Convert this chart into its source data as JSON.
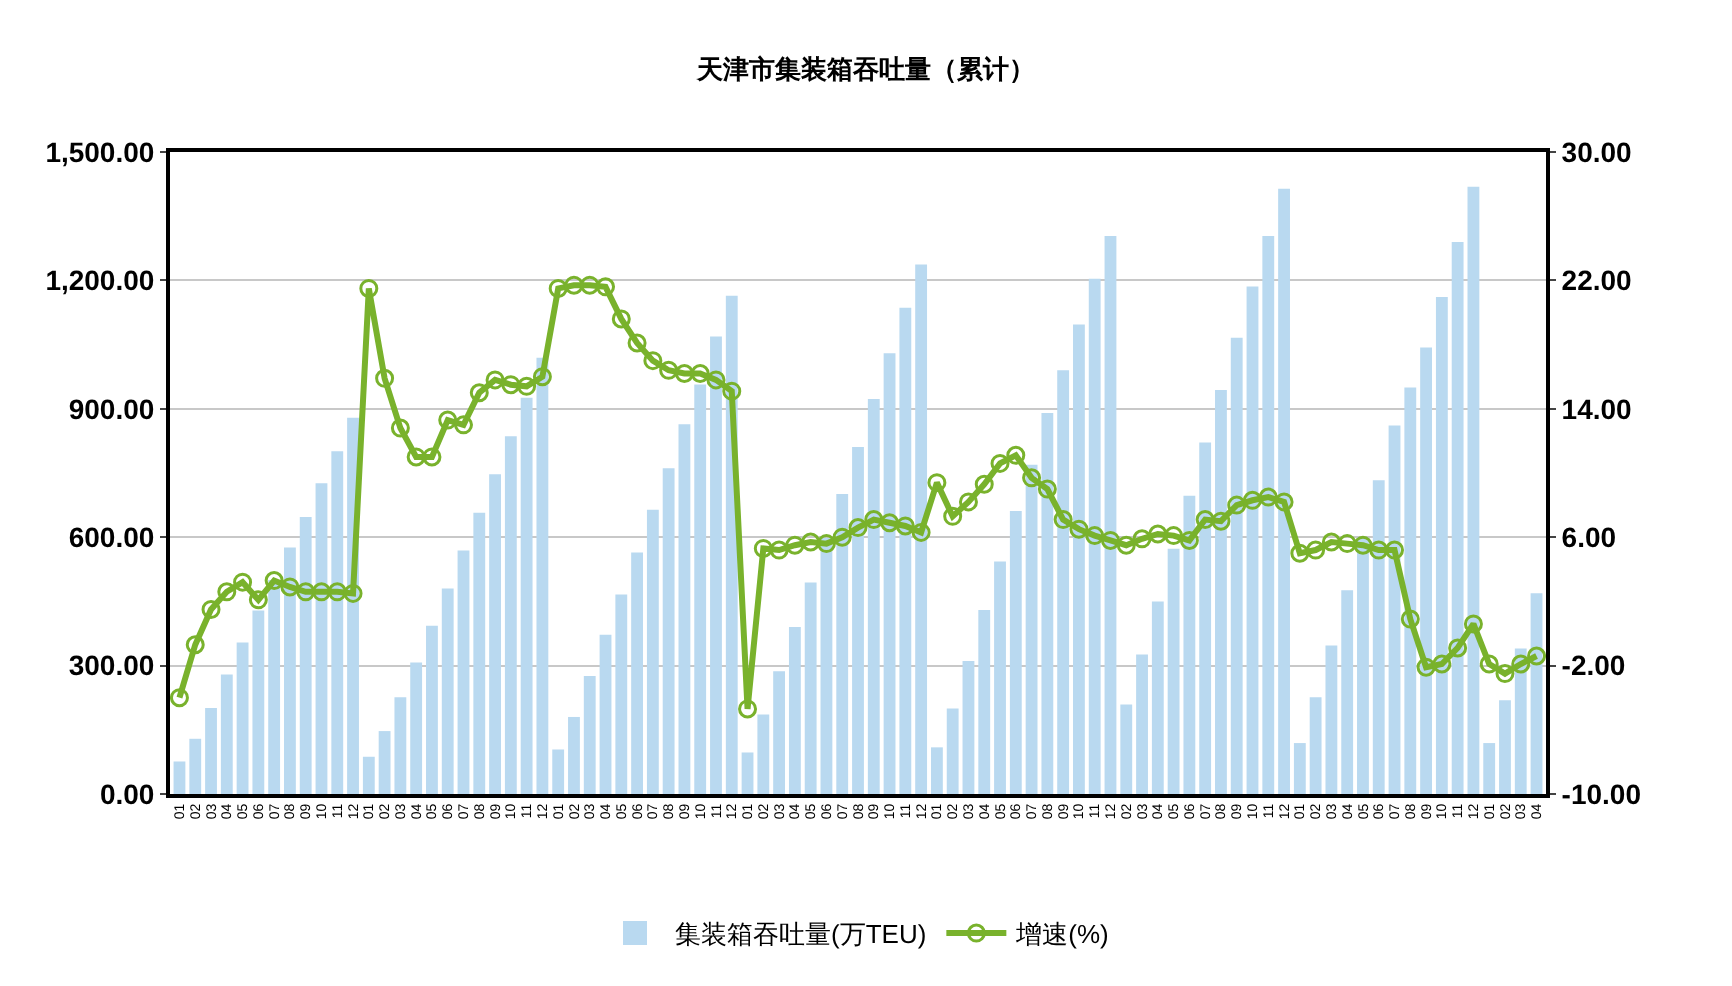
{
  "chart_data": {
    "type": "bar",
    "title": "天津市集装箱吞吐量（累计）",
    "categories": [
      "01",
      "02",
      "03",
      "04",
      "05",
      "06",
      "07",
      "08",
      "09",
      "10",
      "11",
      "12",
      "01",
      "02",
      "03",
      "04",
      "05",
      "06",
      "07",
      "08",
      "09",
      "10",
      "11",
      "12",
      "01",
      "02",
      "03",
      "04",
      "05",
      "06",
      "07",
      "08",
      "09",
      "10",
      "11",
      "12",
      "01",
      "02",
      "03",
      "04",
      "05",
      "06",
      "07",
      "08",
      "09",
      "10",
      "11",
      "12",
      "01",
      "02",
      "03",
      "04",
      "05",
      "06",
      "07",
      "08",
      "09",
      "10",
      "11",
      "12",
      "02",
      "03",
      "04",
      "05",
      "06",
      "07",
      "08",
      "09",
      "10",
      "11",
      "12",
      "01",
      "02",
      "03",
      "04",
      "05",
      "06",
      "07",
      "08",
      "09",
      "10",
      "11",
      "12",
      "01",
      "02",
      "03",
      "04"
    ],
    "series": [
      {
        "name": "集装箱吞吐量(万TEU)",
        "color": "#b9d9f0",
        "values": [
          76,
          129,
          201,
          279,
          354,
          429,
          500,
          576,
          647,
          726,
          801,
          879,
          87,
          147,
          226,
          307,
          393,
          480,
          569,
          657,
          747,
          836,
          926,
          1019,
          104,
          180,
          276,
          372,
          466,
          564,
          664,
          761,
          864,
          957,
          1069,
          1164,
          97,
          186,
          287,
          390,
          494,
          598,
          701,
          811,
          923,
          1030,
          1136,
          1237,
          109,
          200,
          311,
          430,
          543,
          661,
          769,
          890,
          990,
          1097,
          1204,
          1304,
          209,
          326,
          450,
          573,
          697,
          821,
          944,
          1066,
          1186,
          1304,
          1414,
          119,
          226,
          347,
          476,
          600,
          733,
          861,
          950,
          1043,
          1161,
          1290,
          1419,
          119,
          219,
          340,
          469
        ]
      },
      {
        "name": "增速(%)",
        "type": "line",
        "axis": "y2",
        "color": "#79b22c",
        "marker": "circle",
        "values": [
          -4.0,
          -0.7,
          1.5,
          2.6,
          3.2,
          2.1,
          3.3,
          2.9,
          2.6,
          2.6,
          2.6,
          2.5,
          21.5,
          15.9,
          12.8,
          11.0,
          11.0,
          13.3,
          13.0,
          15.0,
          15.8,
          15.5,
          15.4,
          16.0,
          21.5,
          21.7,
          21.7,
          21.6,
          19.6,
          18.1,
          17.0,
          16.4,
          16.2,
          16.2,
          15.8,
          15.1,
          -4.7,
          5.3,
          5.2,
          5.5,
          5.7,
          5.6,
          6.0,
          6.6,
          7.1,
          6.9,
          6.7,
          6.3,
          9.4,
          7.3,
          8.2,
          9.3,
          10.6,
          11.1,
          9.7,
          9.0,
          7.1,
          6.5,
          6.1,
          5.8,
          5.5,
          5.9,
          6.2,
          6.1,
          5.8,
          7.1,
          7.0,
          8.0,
          8.3,
          8.5,
          8.2,
          5.0,
          5.2,
          5.7,
          5.6,
          5.5,
          5.2,
          5.2,
          0.9,
          -2.1,
          -1.9,
          -0.9,
          0.6,
          -1.9,
          -2.5,
          -1.9,
          -1.4
        ]
      }
    ],
    "ylim": [
      0,
      1500
    ],
    "yticks": [
      {
        "value": 0,
        "label": "0.00"
      },
      {
        "value": 300,
        "label": "300.00"
      },
      {
        "value": 600,
        "label": "600.00"
      },
      {
        "value": 900,
        "label": "900.00"
      },
      {
        "value": 1200,
        "label": "1,200.00"
      },
      {
        "value": 1500,
        "label": "1,500.00"
      }
    ],
    "y2lim": [
      -10,
      30
    ],
    "y2ticks": [
      {
        "value": -10,
        "label": "-10.00"
      },
      {
        "value": -2,
        "label": "-2.00"
      },
      {
        "value": 6,
        "label": "6.00"
      },
      {
        "value": 14,
        "label": "14.00"
      },
      {
        "value": 22,
        "label": "22.00"
      },
      {
        "value": 30,
        "label": "30.00"
      }
    ],
    "grid": "y",
    "legend": "bottom"
  }
}
